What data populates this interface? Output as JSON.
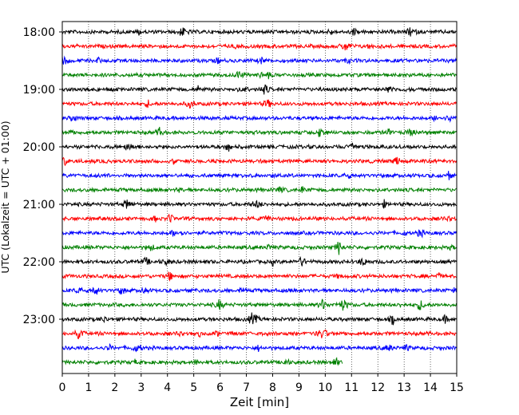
{
  "chart_data": {
    "type": "line",
    "title": "",
    "xlabel": "Zeit  [min]",
    "ylabel": "UTC (Lokalzeit = UTC + 01:00)",
    "xlim": [
      0,
      15
    ],
    "x_ticks": [
      "0",
      "1",
      "2",
      "3",
      "4",
      "5",
      "6",
      "7",
      "8",
      "9",
      "10",
      "11",
      "12",
      "13",
      "14",
      "15"
    ],
    "y_ticks": [
      "18:00",
      "19:00",
      "20:00",
      "21:00",
      "22:00",
      "23:00"
    ],
    "grid": "vertical dotted",
    "trace_interval_min": 15,
    "trace_colors": [
      "#000000",
      "#ff0000",
      "#0000ff",
      "#008000"
    ],
    "traces": [
      {
        "start": "18:00",
        "color": "#000000",
        "end_min": 15
      },
      {
        "start": "18:15",
        "color": "#ff0000",
        "end_min": 15
      },
      {
        "start": "18:30",
        "color": "#0000ff",
        "end_min": 15
      },
      {
        "start": "18:45",
        "color": "#008000",
        "end_min": 15
      },
      {
        "start": "19:00",
        "color": "#000000",
        "end_min": 15
      },
      {
        "start": "19:15",
        "color": "#ff0000",
        "end_min": 15
      },
      {
        "start": "19:30",
        "color": "#0000ff",
        "end_min": 15
      },
      {
        "start": "19:45",
        "color": "#008000",
        "end_min": 15
      },
      {
        "start": "20:00",
        "color": "#000000",
        "end_min": 15
      },
      {
        "start": "20:15",
        "color": "#ff0000",
        "end_min": 15
      },
      {
        "start": "20:30",
        "color": "#0000ff",
        "end_min": 15
      },
      {
        "start": "20:45",
        "color": "#008000",
        "end_min": 15
      },
      {
        "start": "21:00",
        "color": "#000000",
        "end_min": 15
      },
      {
        "start": "21:15",
        "color": "#ff0000",
        "end_min": 15
      },
      {
        "start": "21:30",
        "color": "#0000ff",
        "end_min": 15
      },
      {
        "start": "21:45",
        "color": "#008000",
        "end_min": 15
      },
      {
        "start": "22:00",
        "color": "#000000",
        "end_min": 15
      },
      {
        "start": "22:15",
        "color": "#ff0000",
        "end_min": 15
      },
      {
        "start": "22:30",
        "color": "#0000ff",
        "end_min": 15
      },
      {
        "start": "22:45",
        "color": "#008000",
        "end_min": 15
      },
      {
        "start": "23:00",
        "color": "#000000",
        "end_min": 15
      },
      {
        "start": "23:15",
        "color": "#ff0000",
        "end_min": 15
      },
      {
        "start": "23:30",
        "color": "#0000ff",
        "end_min": 15
      },
      {
        "start": "23:45",
        "color": "#008000",
        "end_min": 10.65
      }
    ]
  }
}
